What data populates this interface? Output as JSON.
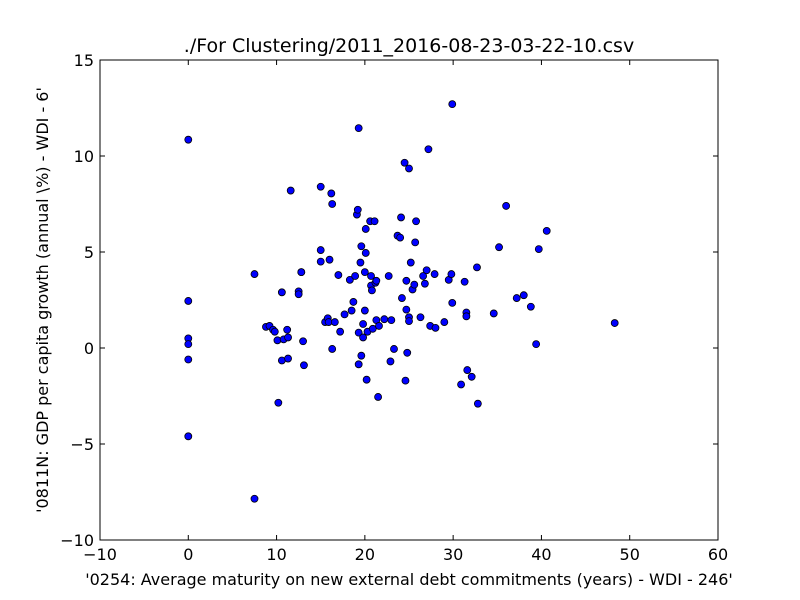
{
  "chart_data": {
    "type": "scatter",
    "title": "./For Clustering/2011_2016-08-23-03-22-10.csv",
    "xlabel": "'0254: Average maturity on new external debt commitments  (years) - WDI - 246'",
    "ylabel": "'0811N: GDP per capita growth  (annual \\%) - WDI - 6'",
    "xlim": [
      -10,
      60
    ],
    "ylim": [
      -10,
      15
    ],
    "xticks": [
      -10,
      0,
      10,
      20,
      30,
      40,
      50,
      60
    ],
    "yticks": [
      -10,
      -5,
      0,
      5,
      10,
      15
    ],
    "xtick_labels": [
      "−10",
      "0",
      "10",
      "20",
      "30",
      "40",
      "50",
      "60"
    ],
    "ytick_labels": [
      "−10",
      "−5",
      "0",
      "5",
      "10",
      "15"
    ],
    "grid": false,
    "marker_color": "#0000ff",
    "marker_edge": "#000000",
    "points": [
      [
        0.0,
        10.85
      ],
      [
        0.0,
        2.45
      ],
      [
        0.0,
        0.5
      ],
      [
        0.0,
        0.2
      ],
      [
        0.0,
        -0.6
      ],
      [
        0.0,
        -4.6
      ],
      [
        7.5,
        3.85
      ],
      [
        7.5,
        -7.85
      ],
      [
        8.8,
        1.1
      ],
      [
        9.2,
        1.15
      ],
      [
        9.6,
        0.95
      ],
      [
        9.8,
        0.85
      ],
      [
        10.1,
        0.4
      ],
      [
        10.2,
        -2.85
      ],
      [
        10.6,
        2.9
      ],
      [
        10.6,
        -0.65
      ],
      [
        10.8,
        0.45
      ],
      [
        11.2,
        0.95
      ],
      [
        11.3,
        0.55
      ],
      [
        11.3,
        -0.55
      ],
      [
        11.6,
        8.2
      ],
      [
        12.5,
        2.95
      ],
      [
        12.5,
        2.8
      ],
      [
        12.8,
        3.95
      ],
      [
        12.8,
        3.95
      ],
      [
        13.0,
        0.35
      ],
      [
        13.1,
        -0.9
      ],
      [
        15.0,
        8.4
      ],
      [
        15.0,
        5.1
      ],
      [
        15.0,
        4.5
      ],
      [
        15.5,
        1.35
      ],
      [
        15.8,
        1.55
      ],
      [
        15.9,
        1.35
      ],
      [
        16.0,
        4.6
      ],
      [
        16.2,
        8.05
      ],
      [
        16.3,
        7.5
      ],
      [
        16.3,
        -0.05
      ],
      [
        16.6,
        1.35
      ],
      [
        17.0,
        3.8
      ],
      [
        17.2,
        0.85
      ],
      [
        17.7,
        1.75
      ],
      [
        18.3,
        3.55
      ],
      [
        18.5,
        1.95
      ],
      [
        18.7,
        2.4
      ],
      [
        18.9,
        3.75
      ],
      [
        19.1,
        6.95
      ],
      [
        19.2,
        7.2
      ],
      [
        19.3,
        11.45
      ],
      [
        19.3,
        0.8
      ],
      [
        19.3,
        -0.85
      ],
      [
        19.5,
        4.45
      ],
      [
        19.6,
        5.3
      ],
      [
        19.6,
        -0.4
      ],
      [
        19.8,
        1.25
      ],
      [
        19.8,
        0.55
      ],
      [
        20.0,
        3.95
      ],
      [
        20.0,
        1.95
      ],
      [
        20.1,
        6.2
      ],
      [
        20.1,
        4.95
      ],
      [
        20.2,
        -1.65
      ],
      [
        20.3,
        0.85
      ],
      [
        20.6,
        6.6
      ],
      [
        20.7,
        3.75
      ],
      [
        20.7,
        3.25
      ],
      [
        20.8,
        3.0
      ],
      [
        20.9,
        1.0
      ],
      [
        21.1,
        6.6
      ],
      [
        21.2,
        3.4
      ],
      [
        21.3,
        3.5
      ],
      [
        21.3,
        1.45
      ],
      [
        21.5,
        -2.55
      ],
      [
        21.6,
        1.15
      ],
      [
        22.2,
        1.5
      ],
      [
        22.7,
        3.75
      ],
      [
        22.9,
        -0.7
      ],
      [
        23.0,
        1.45
      ],
      [
        23.3,
        -0.05
      ],
      [
        23.7,
        5.85
      ],
      [
        24.0,
        5.75
      ],
      [
        24.1,
        6.8
      ],
      [
        24.2,
        2.6
      ],
      [
        24.5,
        9.65
      ],
      [
        24.6,
        -1.7
      ],
      [
        24.7,
        3.5
      ],
      [
        24.7,
        2.0
      ],
      [
        24.8,
        -0.25
      ],
      [
        25.0,
        9.35
      ],
      [
        25.0,
        1.6
      ],
      [
        25.0,
        1.4
      ],
      [
        25.2,
        4.45
      ],
      [
        25.4,
        3.05
      ],
      [
        25.6,
        3.3
      ],
      [
        25.7,
        5.5
      ],
      [
        25.8,
        6.6
      ],
      [
        26.3,
        1.6
      ],
      [
        26.6,
        3.75
      ],
      [
        26.8,
        3.35
      ],
      [
        27.0,
        4.05
      ],
      [
        27.2,
        10.35
      ],
      [
        27.4,
        1.15
      ],
      [
        27.9,
        3.85
      ],
      [
        28.0,
        1.05
      ],
      [
        29.0,
        1.35
      ],
      [
        29.5,
        3.55
      ],
      [
        29.8,
        3.85
      ],
      [
        29.9,
        12.7
      ],
      [
        29.9,
        2.35
      ],
      [
        30.9,
        -1.9
      ],
      [
        31.3,
        3.45
      ],
      [
        31.5,
        1.85
      ],
      [
        31.5,
        1.65
      ],
      [
        31.6,
        -1.15
      ],
      [
        32.1,
        -1.5
      ],
      [
        32.7,
        4.2
      ],
      [
        32.8,
        -2.9
      ],
      [
        34.6,
        1.8
      ],
      [
        35.2,
        5.25
      ],
      [
        36.0,
        7.4
      ],
      [
        37.2,
        2.6
      ],
      [
        38.0,
        2.75
      ],
      [
        38.8,
        2.15
      ],
      [
        39.4,
        0.2
      ],
      [
        39.7,
        5.15
      ],
      [
        40.6,
        6.1
      ],
      [
        48.3,
        1.3
      ]
    ]
  }
}
